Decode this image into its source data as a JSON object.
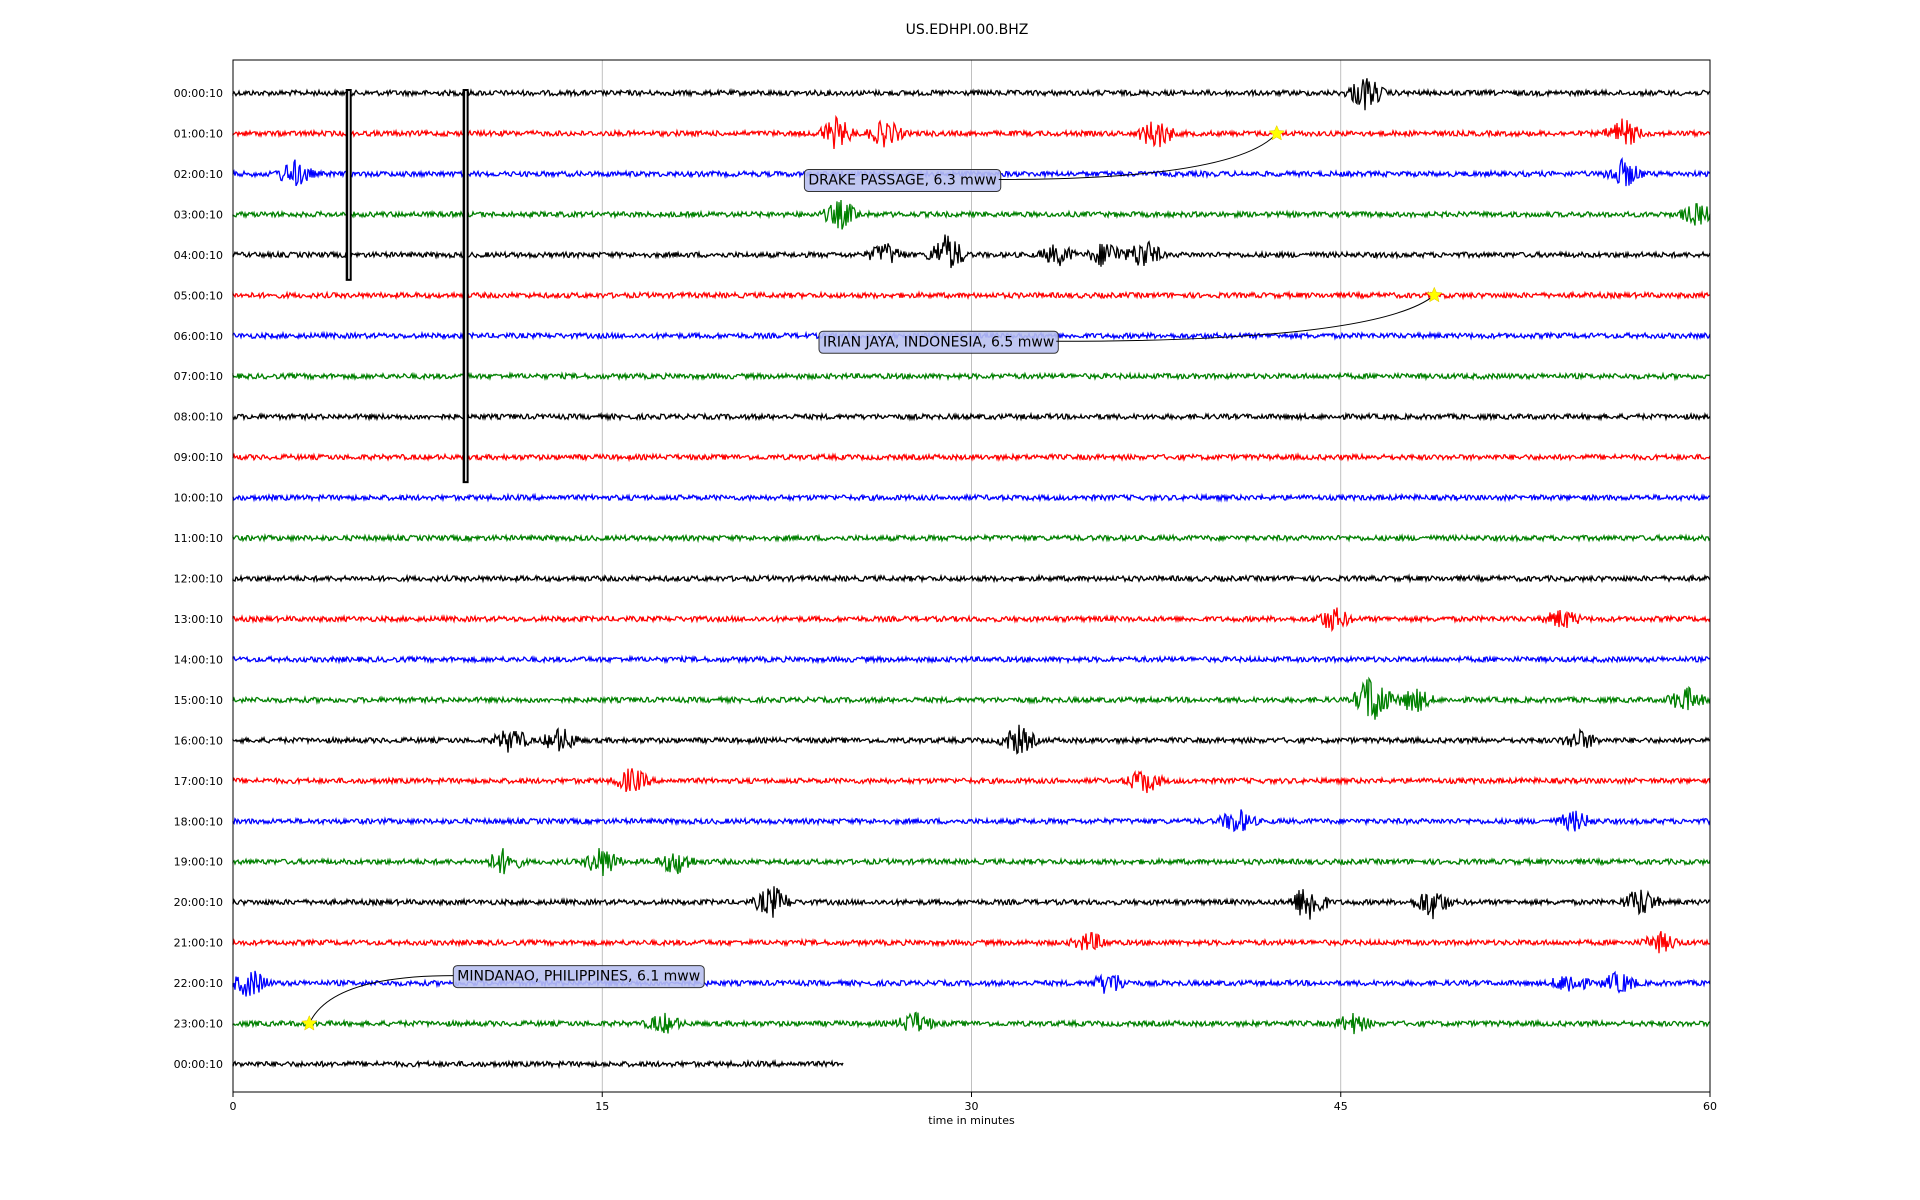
{
  "chart_data": {
    "type": "line",
    "title": "US.EDHPI.00.BHZ",
    "xlabel": "time in minutes",
    "ylabel": "",
    "xlim": [
      0,
      60
    ],
    "x_ticks": [
      "0",
      "15",
      "30",
      "45",
      "60"
    ],
    "grid": "vertical lines at x ticks",
    "colors": [
      "#000000",
      "#ff0000",
      "#0000ff",
      "#008000"
    ],
    "rows": [
      {
        "label": "00:00:10",
        "color": "#000000",
        "end_min": 60
      },
      {
        "label": "01:00:10",
        "color": "#ff0000",
        "end_min": 60
      },
      {
        "label": "02:00:10",
        "color": "#0000ff",
        "end_min": 60
      },
      {
        "label": "03:00:10",
        "color": "#008000",
        "end_min": 60
      },
      {
        "label": "04:00:10",
        "color": "#000000",
        "end_min": 60
      },
      {
        "label": "05:00:10",
        "color": "#ff0000",
        "end_min": 60
      },
      {
        "label": "06:00:10",
        "color": "#0000ff",
        "end_min": 60
      },
      {
        "label": "07:00:10",
        "color": "#008000",
        "end_min": 60
      },
      {
        "label": "08:00:10",
        "color": "#000000",
        "end_min": 60
      },
      {
        "label": "09:00:10",
        "color": "#ff0000",
        "end_min": 60
      },
      {
        "label": "10:00:10",
        "color": "#0000ff",
        "end_min": 60
      },
      {
        "label": "11:00:10",
        "color": "#008000",
        "end_min": 60
      },
      {
        "label": "12:00:10",
        "color": "#000000",
        "end_min": 60
      },
      {
        "label": "13:00:10",
        "color": "#ff0000",
        "end_min": 60
      },
      {
        "label": "14:00:10",
        "color": "#0000ff",
        "end_min": 60
      },
      {
        "label": "15:00:10",
        "color": "#008000",
        "end_min": 60
      },
      {
        "label": "16:00:10",
        "color": "#000000",
        "end_min": 60
      },
      {
        "label": "17:00:10",
        "color": "#ff0000",
        "end_min": 60
      },
      {
        "label": "18:00:10",
        "color": "#0000ff",
        "end_min": 60
      },
      {
        "label": "19:00:10",
        "color": "#008000",
        "end_min": 60
      },
      {
        "label": "20:00:10",
        "color": "#000000",
        "end_min": 60
      },
      {
        "label": "21:00:10",
        "color": "#ff0000",
        "end_min": 60
      },
      {
        "label": "22:00:10",
        "color": "#0000ff",
        "end_min": 60
      },
      {
        "label": "23:00:10",
        "color": "#008000",
        "end_min": 60
      },
      {
        "label": "00:00:10",
        "color": "#000000",
        "end_min": 24.8
      }
    ],
    "events": [
      {
        "label": "DRAKE PASSAGE, 6.3 mww",
        "row": 1,
        "minute": 42.4
      },
      {
        "label": "IRIAN JAYA, INDONESIA, 6.5 mww",
        "row": 5,
        "minute": 48.8
      },
      {
        "label": "MINDANAO, PHILIPPINES, 6.1 mww",
        "row": 23,
        "minute": 3.1
      }
    ],
    "marker_color": "#ffff00",
    "bursts": [
      {
        "row": 0,
        "minute": 46.0,
        "amp": 1.8
      },
      {
        "row": 1,
        "minute": 24.5,
        "amp": 1.6
      },
      {
        "row": 1,
        "minute": 26.5,
        "amp": 1.4
      },
      {
        "row": 1,
        "minute": 37.5,
        "amp": 1.6
      },
      {
        "row": 1,
        "minute": 56.5,
        "amp": 1.5
      },
      {
        "row": 2,
        "minute": 2.5,
        "amp": 1.4
      },
      {
        "row": 2,
        "minute": 56.5,
        "amp": 1.5
      },
      {
        "row": 3,
        "minute": 24.7,
        "amp": 1.5
      },
      {
        "row": 3,
        "minute": 59.5,
        "amp": 1.1
      },
      {
        "row": 4,
        "minute": 26.5,
        "amp": 1.2
      },
      {
        "row": 4,
        "minute": 29.0,
        "amp": 2.2
      },
      {
        "row": 4,
        "minute": 33.5,
        "amp": 1.1
      },
      {
        "row": 4,
        "minute": 35.5,
        "amp": 1.5
      },
      {
        "row": 4,
        "minute": 37.0,
        "amp": 1.6
      },
      {
        "row": 13,
        "minute": 44.7,
        "amp": 1.2
      },
      {
        "row": 13,
        "minute": 54.0,
        "amp": 1.0
      },
      {
        "row": 15,
        "minute": 46.3,
        "amp": 3.0
      },
      {
        "row": 15,
        "minute": 48.0,
        "amp": 1.3
      },
      {
        "row": 15,
        "minute": 59.0,
        "amp": 1.3
      },
      {
        "row": 16,
        "minute": 11.3,
        "amp": 1.3
      },
      {
        "row": 16,
        "minute": 13.3,
        "amp": 1.3
      },
      {
        "row": 16,
        "minute": 31.9,
        "amp": 1.5
      },
      {
        "row": 16,
        "minute": 54.7,
        "amp": 1.0
      },
      {
        "row": 17,
        "minute": 16.2,
        "amp": 1.3
      },
      {
        "row": 17,
        "minute": 37.0,
        "amp": 1.3
      },
      {
        "row": 18,
        "minute": 40.8,
        "amp": 1.3
      },
      {
        "row": 18,
        "minute": 54.5,
        "amp": 1.0
      },
      {
        "row": 19,
        "minute": 11.0,
        "amp": 1.3
      },
      {
        "row": 19,
        "minute": 15.0,
        "amp": 1.6
      },
      {
        "row": 19,
        "minute": 18.0,
        "amp": 1.3
      },
      {
        "row": 20,
        "minute": 21.9,
        "amp": 1.7
      },
      {
        "row": 20,
        "minute": 43.7,
        "amp": 2.2
      },
      {
        "row": 20,
        "minute": 48.7,
        "amp": 1.7
      },
      {
        "row": 20,
        "minute": 57.2,
        "amp": 1.5
      },
      {
        "row": 21,
        "minute": 34.8,
        "amp": 1.0
      },
      {
        "row": 21,
        "minute": 58.0,
        "amp": 1.0
      },
      {
        "row": 22,
        "minute": 0.7,
        "amp": 1.5
      },
      {
        "row": 22,
        "minute": 35.6,
        "amp": 1.2
      },
      {
        "row": 22,
        "minute": 54.3,
        "amp": 1.1
      },
      {
        "row": 22,
        "minute": 56.3,
        "amp": 1.1
      },
      {
        "row": 23,
        "minute": 17.5,
        "amp": 1.0
      },
      {
        "row": 23,
        "minute": 27.7,
        "amp": 1.2
      },
      {
        "row": 23,
        "minute": 45.5,
        "amp": 1.0
      }
    ],
    "spikes": [
      {
        "minute": 4.7,
        "from_row": 0,
        "to_row": 4
      },
      {
        "minute": 9.45,
        "from_row": 0,
        "to_row": 9
      }
    ]
  }
}
